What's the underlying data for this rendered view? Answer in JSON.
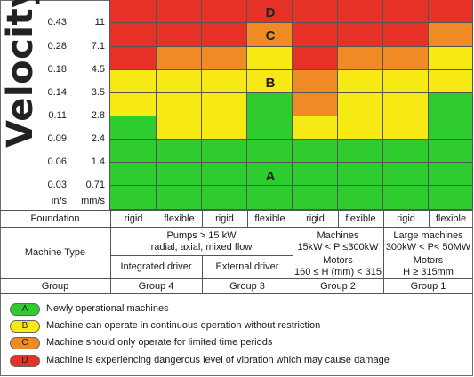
{
  "colors": {
    "A": "#2ecc2e",
    "B": "#f7ea14",
    "C": "#f08a24",
    "D": "#e53126"
  },
  "axis": {
    "title": "Velocity",
    "in_s_ticks": [
      "0.43",
      "0.28",
      "0.18",
      "0.14",
      "0.11",
      "0.09",
      "0.06",
      "0.03"
    ],
    "mm_s_ticks": [
      "11",
      "7.1",
      "4.5",
      "3.5",
      "2.8",
      "2.4",
      "1.4",
      "0.71"
    ],
    "unit_in": "in/s",
    "unit_mm": "mm/s"
  },
  "zones": {
    "D": "D",
    "C": "C",
    "B": "B",
    "A": "A"
  },
  "grid_columns": [
    [
      "D",
      "D",
      "D",
      "B",
      "B",
      "A",
      "A",
      "A"
    ],
    [
      "D",
      "D",
      "C",
      "B",
      "B",
      "B",
      "A",
      "A"
    ],
    [
      "D",
      "D",
      "C",
      "B",
      "B",
      "B",
      "A",
      "A"
    ],
    [
      "D",
      "C",
      "B",
      "B",
      "A",
      "A",
      "A",
      "A"
    ],
    [
      "D",
      "D",
      "D",
      "C",
      "C",
      "B",
      "A",
      "A"
    ],
    [
      "D",
      "D",
      "C",
      "B",
      "B",
      "B",
      "A",
      "A"
    ],
    [
      "D",
      "D",
      "C",
      "B",
      "B",
      "B",
      "A",
      "A"
    ],
    [
      "D",
      "C",
      "B",
      "B",
      "A",
      "A",
      "A",
      "A"
    ]
  ],
  "table": {
    "foundation_label": "Foundation",
    "foundations": [
      "rigid",
      "flexible",
      "rigid",
      "flexible",
      "rigid",
      "flexible",
      "rigid",
      "flexible"
    ],
    "machine_type_label": "Machine Type",
    "pumps_line1": "Pumps > 15 kW",
    "pumps_line2": "radial, axial, mixed flow",
    "machines_line1": "Machines",
    "machines_line2": "15kW < P ≤300kW",
    "large_line1": "Large machines",
    "large_line2": "300kW < P< 50MW",
    "integrated_driver": "Integrated driver",
    "external_driver": "External driver",
    "motors_g2_line1": "Motors",
    "motors_g2_line2": "160 ≤ H (mm) < 315",
    "motors_g1_line1": "Motors",
    "motors_g1_line2": "H ≥ 315mm",
    "group_label": "Group",
    "groups": [
      "Group 4",
      "Group 3",
      "Group 2",
      "Group 1"
    ]
  },
  "legend": [
    {
      "code": "A",
      "text": "Newly operational machines"
    },
    {
      "code": "B",
      "text": "Machine can operate in continuous operation without restriction"
    },
    {
      "code": "C",
      "text": "Machine should only operate for limited time periods"
    },
    {
      "code": "D",
      "text": "Machine is experiencing dangerous level of vibration which may cause damage"
    }
  ]
}
